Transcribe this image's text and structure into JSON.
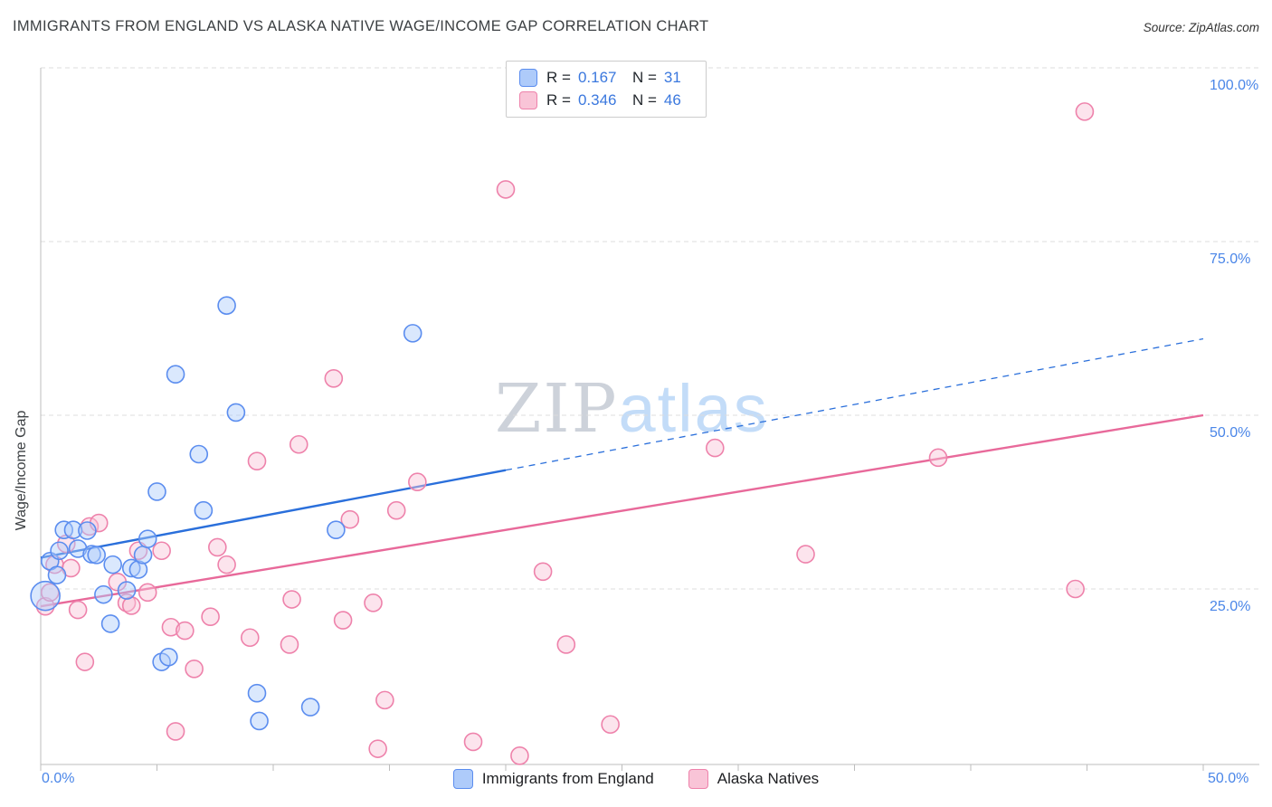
{
  "header": {
    "title": "IMMIGRANTS FROM ENGLAND VS ALASKA NATIVE WAGE/INCOME GAP CORRELATION CHART",
    "source": "Source: ZipAtlas.com"
  },
  "watermark": {
    "zip": "ZIP",
    "atlas": "atlas"
  },
  "legend_box": {
    "rows": [
      {
        "series": "Immigrants from England",
        "r_label": "R =",
        "r_value": "0.167",
        "n_label": "N =",
        "n_value": "31"
      },
      {
        "series": "Alaska Natives",
        "r_label": "R =",
        "r_value": "0.346",
        "n_label": "N =",
        "n_value": "46"
      }
    ]
  },
  "axes": {
    "y_axis_label": "Wage/Income Gap",
    "y_tick_labels": [
      "100.0%",
      "75.0%",
      "50.0%",
      "25.0%"
    ],
    "x_tick_labels": [
      "0.0%",
      "50.0%"
    ]
  },
  "bottom_legend": {
    "items": [
      {
        "label": "Immigrants from England"
      },
      {
        "label": "Alaska Natives"
      }
    ]
  },
  "colors": {
    "england_fill": "#aecbfa",
    "england_stroke": "#5b8def",
    "england_trend": "#2a6fdb",
    "alaska_fill": "#f9c4d7",
    "alaska_stroke": "#ee82ab",
    "alaska_trend": "#e8699a",
    "tick_label": "#4a86e8"
  },
  "chart_data": {
    "type": "scatter",
    "title": "Immigrants from England vs Alaska Native Wage/Income Gap",
    "ylabel": "Wage/Income Gap",
    "x_axis": {
      "min": 0,
      "max": 50,
      "unit": "%",
      "labels": [
        "0.0%",
        "50.0%"
      ]
    },
    "y_axis": {
      "min": 0,
      "max": 100,
      "unit": "%",
      "gridlines": [
        25,
        50,
        75,
        100
      ],
      "labels": [
        "25.0%",
        "50.0%",
        "75.0%",
        "100.0%"
      ]
    },
    "grid": "horizontal-dashed",
    "legend_position": "bottom-center",
    "series": [
      {
        "name": "Immigrants from England",
        "R": 0.167,
        "N": 31,
        "points": [
          [
            0.2,
            24,
            16
          ],
          [
            0.4,
            29
          ],
          [
            0.7,
            27
          ],
          [
            0.8,
            30.5
          ],
          [
            1.0,
            33.5
          ],
          [
            1.4,
            33.5
          ],
          [
            1.6,
            30.8
          ],
          [
            2.0,
            33.4
          ],
          [
            2.2,
            30.0
          ],
          [
            2.4,
            29.9
          ],
          [
            2.7,
            24.2
          ],
          [
            3.0,
            20.0
          ],
          [
            3.1,
            28.5
          ],
          [
            3.7,
            24.8
          ],
          [
            3.9,
            28.0
          ],
          [
            4.2,
            27.8
          ],
          [
            4.4,
            29.9
          ],
          [
            4.6,
            32.2
          ],
          [
            5.0,
            39.0
          ],
          [
            5.2,
            14.5
          ],
          [
            5.5,
            15.2
          ],
          [
            5.8,
            55.9
          ],
          [
            6.8,
            44.4
          ],
          [
            7.0,
            36.3
          ],
          [
            8.0,
            65.8
          ],
          [
            8.4,
            50.4
          ],
          [
            9.3,
            10.0
          ],
          [
            9.4,
            6.0
          ],
          [
            11.6,
            8.0
          ],
          [
            12.7,
            33.5
          ],
          [
            16.0,
            61.8
          ]
        ]
      },
      {
        "name": "Alaska Natives",
        "R": 0.346,
        "N": 46,
        "points": [
          [
            0.2,
            22.5
          ],
          [
            0.4,
            24.5
          ],
          [
            0.6,
            28.5
          ],
          [
            1.1,
            31.5
          ],
          [
            1.3,
            28.0
          ],
          [
            1.6,
            22.0
          ],
          [
            1.9,
            14.5
          ],
          [
            2.1,
            34.0
          ],
          [
            2.5,
            34.5
          ],
          [
            3.3,
            26.0
          ],
          [
            3.7,
            23.0
          ],
          [
            3.9,
            22.6
          ],
          [
            4.2,
            30.5
          ],
          [
            4.6,
            24.5
          ],
          [
            5.2,
            30.5
          ],
          [
            5.6,
            19.5
          ],
          [
            5.8,
            4.5
          ],
          [
            6.2,
            19.0
          ],
          [
            6.6,
            13.5
          ],
          [
            7.3,
            21.0
          ],
          [
            7.6,
            31.0
          ],
          [
            8.0,
            28.5
          ],
          [
            9.0,
            18.0
          ],
          [
            9.3,
            43.4
          ],
          [
            10.7,
            17.0
          ],
          [
            10.8,
            23.5
          ],
          [
            11.1,
            45.8
          ],
          [
            12.6,
            55.3
          ],
          [
            13.0,
            20.5
          ],
          [
            13.3,
            35.0
          ],
          [
            14.3,
            23.0
          ],
          [
            14.5,
            2.0
          ],
          [
            14.8,
            9.0
          ],
          [
            15.3,
            36.3
          ],
          [
            16.2,
            40.4
          ],
          [
            18.6,
            3.0
          ],
          [
            20.0,
            82.5
          ],
          [
            20.6,
            1.0
          ],
          [
            21.6,
            27.5
          ],
          [
            22.6,
            17.0
          ],
          [
            24.5,
            5.5
          ],
          [
            29.0,
            45.3
          ],
          [
            32.9,
            30.0
          ],
          [
            38.6,
            43.9
          ],
          [
            44.5,
            25.0
          ],
          [
            44.9,
            93.7
          ]
        ]
      }
    ],
    "trend_lines": [
      {
        "series": "Immigrants from England",
        "start": {
          "x": 0,
          "y": 29.5
        },
        "end": {
          "x": 50,
          "y": 61
        },
        "solid_to_x": 20,
        "style": "solid-then-dashed"
      },
      {
        "series": "Alaska Natives",
        "start": {
          "x": 0,
          "y": 22.5
        },
        "end": {
          "x": 50,
          "y": 50
        },
        "solid_to_x": 50,
        "style": "solid"
      }
    ]
  }
}
